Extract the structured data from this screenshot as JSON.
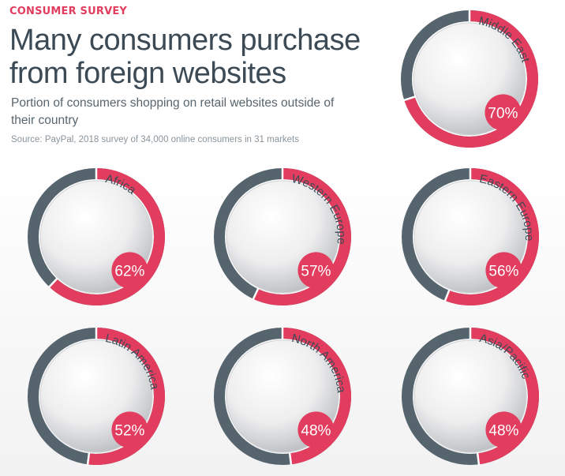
{
  "header": {
    "kicker": "CONSUMER SURVEY",
    "title": "Many consumers purchase from foreign websites",
    "subtitle": "Portion of consumers shopping on retail websites outside of their country",
    "source": "Source: PayPal, 2018 survey of 34,000 online consumers in 31 markets"
  },
  "colors": {
    "accent": "#e23d5e",
    "remainder": "#56646e",
    "title": "#3c4a55",
    "globe_light": "#ffffff",
    "globe_dark": "#bcbfc3",
    "land_dots": "#3a3a3a"
  },
  "chart_data": {
    "type": "donut",
    "unit": "%",
    "categories": [
      "Middle East",
      "Africa",
      "Western Europe",
      "Eastern Europe",
      "Latin America",
      "North America",
      "Asia/Pacific"
    ],
    "values": [
      70,
      62,
      57,
      56,
      52,
      48,
      48
    ],
    "labels": [
      "70%",
      "62%",
      "57%",
      "56%",
      "52%",
      "48%",
      "48%"
    ],
    "max": 100
  }
}
